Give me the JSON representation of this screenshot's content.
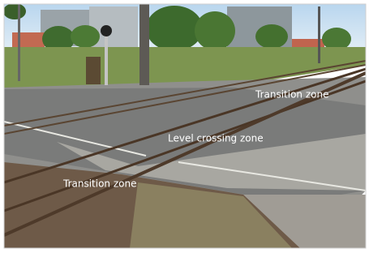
{
  "annotations": [
    {
      "text": "Transition zone"
    },
    {
      "text": "Level crossing zone"
    },
    {
      "text": "Transition zone"
    }
  ]
}
